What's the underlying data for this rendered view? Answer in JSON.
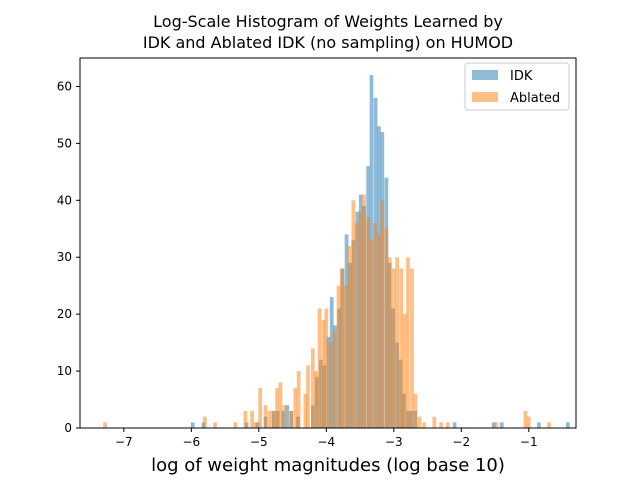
{
  "chart_data": {
    "type": "histogram",
    "title_lines": [
      "Log-Scale Histogram of Weights Learned by",
      "IDK and Ablated IDK (no sampling) on HUMOD"
    ],
    "xlabel": "log of weight magnitudes (log base 10)",
    "ylabel": "",
    "xlim": [
      -7.65,
      -0.3
    ],
    "ylim": [
      0,
      65
    ],
    "xticks": [
      -7,
      -6,
      -5,
      -4,
      -3,
      -2,
      -1
    ],
    "xtick_labels": [
      "−7",
      "−6",
      "−5",
      "−4",
      "−3",
      "−2",
      "−1"
    ],
    "yticks": [
      0,
      10,
      20,
      30,
      40,
      50,
      60
    ],
    "ytick_labels": [
      "0",
      "10",
      "20",
      "30",
      "40",
      "50",
      "60"
    ],
    "bin_width": 0.055,
    "legend_position": "top-right",
    "series": [
      {
        "name": "IDK",
        "color": "#1f77b4",
        "alpha": 0.5,
        "bins": [
          [
            -5.98,
            1
          ],
          [
            -5.82,
            1
          ],
          [
            -5.18,
            1
          ],
          [
            -5.02,
            1
          ],
          [
            -4.9,
            2
          ],
          [
            -4.78,
            3
          ],
          [
            -4.72,
            3
          ],
          [
            -4.64,
            3
          ],
          [
            -4.58,
            4
          ],
          [
            -4.52,
            3
          ],
          [
            -4.42,
            2
          ],
          [
            -4.2,
            4
          ],
          [
            -4.14,
            9
          ],
          [
            -4.08,
            12
          ],
          [
            -4.03,
            11
          ],
          [
            -3.97,
            16
          ],
          [
            -3.92,
            23
          ],
          [
            -3.87,
            18
          ],
          [
            -3.81,
            21
          ],
          [
            -3.76,
            28
          ],
          [
            -3.7,
            34
          ],
          [
            -3.65,
            29
          ],
          [
            -3.6,
            33
          ],
          [
            -3.54,
            38
          ],
          [
            -3.49,
            41
          ],
          [
            -3.44,
            39
          ],
          [
            -3.38,
            46
          ],
          [
            -3.33,
            62
          ],
          [
            -3.27,
            58
          ],
          [
            -3.22,
            53
          ],
          [
            -3.17,
            52
          ],
          [
            -3.11,
            44
          ],
          [
            -3.06,
            29
          ],
          [
            -3.01,
            21
          ],
          [
            -2.95,
            15
          ],
          [
            -2.9,
            12
          ],
          [
            -2.85,
            6
          ],
          [
            -2.79,
            3
          ],
          [
            -2.74,
            3
          ],
          [
            -2.68,
            3
          ],
          [
            -2.1,
            1
          ],
          [
            -1.52,
            1
          ],
          [
            -1.4,
            1
          ],
          [
            -0.85,
            1
          ],
          [
            -0.42,
            1
          ]
        ]
      },
      {
        "name": "Ablated",
        "color": "#ff7f0e",
        "alpha": 0.5,
        "bins": [
          [
            -7.28,
            1
          ],
          [
            -5.8,
            2
          ],
          [
            -5.65,
            1
          ],
          [
            -5.35,
            1
          ],
          [
            -5.2,
            3
          ],
          [
            -5.1,
            3
          ],
          [
            -5.05,
            1
          ],
          [
            -4.98,
            7
          ],
          [
            -4.9,
            4
          ],
          [
            -4.84,
            3
          ],
          [
            -4.78,
            3
          ],
          [
            -4.73,
            7
          ],
          [
            -4.68,
            8
          ],
          [
            -4.62,
            4
          ],
          [
            -4.52,
            3
          ],
          [
            -4.46,
            7
          ],
          [
            -4.41,
            10
          ],
          [
            -4.31,
            6
          ],
          [
            -4.27,
            11
          ],
          [
            -4.2,
            14
          ],
          [
            -4.15,
            10
          ],
          [
            -4.1,
            21
          ],
          [
            -4.04,
            19
          ],
          [
            -4.0,
            21
          ],
          [
            -3.94,
            15
          ],
          [
            -3.88,
            17
          ],
          [
            -3.82,
            25
          ],
          [
            -3.77,
            28
          ],
          [
            -3.71,
            25
          ],
          [
            -3.66,
            32
          ],
          [
            -3.6,
            40
          ],
          [
            -3.55,
            36
          ],
          [
            -3.49,
            38
          ],
          [
            -3.44,
            41
          ],
          [
            -3.38,
            37
          ],
          [
            -3.33,
            33
          ],
          [
            -3.28,
            36
          ],
          [
            -3.22,
            34
          ],
          [
            -3.17,
            40
          ],
          [
            -3.11,
            35
          ],
          [
            -3.06,
            30
          ],
          [
            -3.0,
            28
          ],
          [
            -2.95,
            30
          ],
          [
            -2.89,
            28
          ],
          [
            -2.84,
            20
          ],
          [
            -2.79,
            30
          ],
          [
            -2.73,
            28
          ],
          [
            -2.68,
            6
          ],
          [
            -2.62,
            2
          ],
          [
            -2.55,
            1
          ],
          [
            -2.4,
            2
          ],
          [
            -2.3,
            1
          ],
          [
            -2.2,
            1
          ],
          [
            -1.48,
            1
          ],
          [
            -1.05,
            3
          ],
          [
            -1.0,
            2
          ],
          [
            -0.7,
            1
          ]
        ]
      }
    ]
  }
}
